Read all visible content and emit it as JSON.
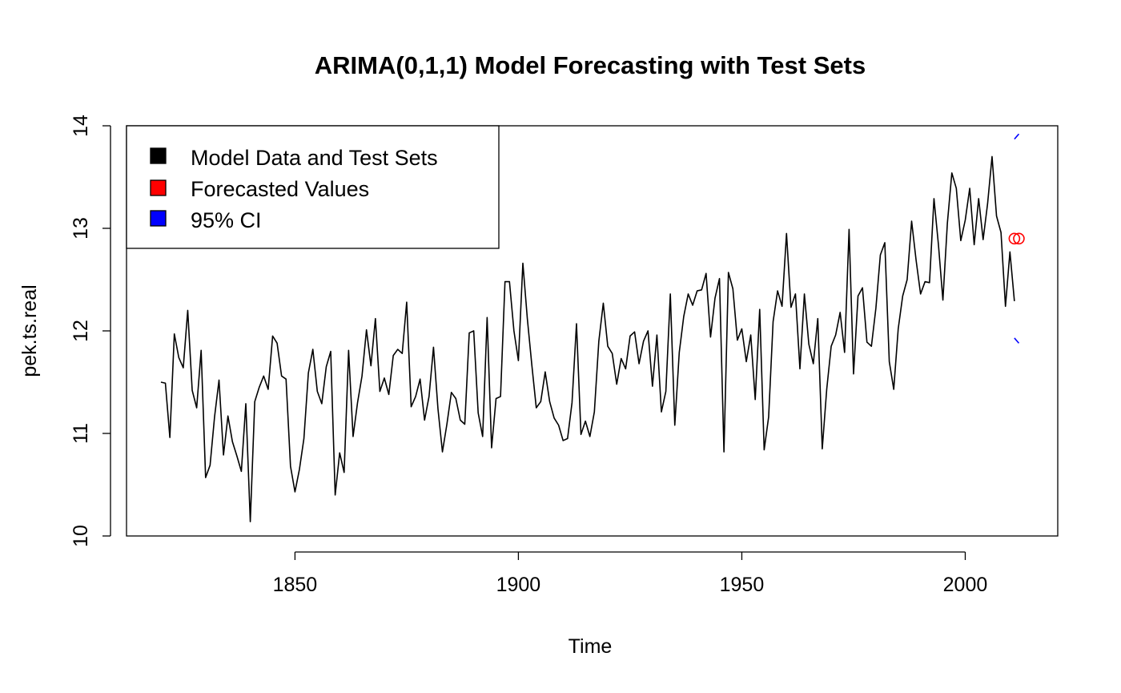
{
  "chart_data": {
    "type": "line",
    "title": "ARIMA(0,1,1) Model Forecasting with Test Sets",
    "xlabel": "Time",
    "ylabel": "pek.ts.real",
    "xlim": [
      1812.3,
      2020.7
    ],
    "ylim": [
      10,
      14
    ],
    "x_ticks": [
      1850,
      1900,
      1950,
      2000
    ],
    "y_ticks": [
      10,
      11,
      12,
      13,
      14
    ],
    "grid": false,
    "legend_position": "top-left",
    "legend": [
      {
        "label": "Model Data and Test Sets",
        "color": "#000000"
      },
      {
        "label": "Forecasted Values",
        "color": "#ff0000"
      },
      {
        "label": "95% CI",
        "color": "#0000ff"
      }
    ],
    "series": [
      {
        "kind": "line",
        "color": "#000000",
        "start_year": 1820,
        "values": [
          11.5,
          11.49,
          10.96,
          11.97,
          11.74,
          11.64,
          12.2,
          11.42,
          11.25,
          11.81,
          10.57,
          10.69,
          11.16,
          11.52,
          10.79,
          11.17,
          10.92,
          10.78,
          10.63,
          11.29,
          10.14,
          11.31,
          11.45,
          11.56,
          11.43,
          11.95,
          11.88,
          11.56,
          11.53,
          10.68,
          10.43,
          10.65,
          10.95,
          11.59,
          11.82,
          11.41,
          11.29,
          11.65,
          11.8,
          10.4,
          10.81,
          10.62,
          11.81,
          10.97,
          11.3,
          11.56,
          12.01,
          11.66,
          12.12,
          11.41,
          11.54,
          11.38,
          11.76,
          11.82,
          11.78,
          12.28,
          11.26,
          11.36,
          11.53,
          11.13,
          11.36,
          11.84,
          11.24,
          10.82,
          11.09,
          11.4,
          11.34,
          11.13,
          11.09,
          11.98,
          12.0,
          11.2,
          10.97,
          12.13,
          10.86,
          11.34,
          11.36,
          12.48,
          12.48,
          12.0,
          11.71,
          12.66,
          12.12,
          11.67,
          11.25,
          11.31,
          11.6,
          11.31,
          11.15,
          11.08,
          10.93,
          10.95,
          11.3,
          12.07,
          10.99,
          11.12,
          10.97,
          11.21,
          11.9,
          12.27,
          11.85,
          11.78,
          11.48,
          11.73,
          11.63,
          11.95,
          11.99,
          11.68,
          11.9,
          12.0,
          11.46,
          11.96,
          11.21,
          11.41,
          12.36,
          11.08,
          11.79,
          12.14,
          12.36,
          12.25,
          12.39,
          12.4,
          12.56,
          11.94,
          12.32,
          12.51,
          10.82,
          12.57,
          12.41,
          11.91,
          12.02,
          11.7,
          11.96,
          11.33,
          12.21,
          10.84,
          11.16,
          12.09,
          12.39,
          12.24,
          12.95,
          12.23,
          12.36,
          11.63,
          12.36,
          11.87,
          11.68,
          12.12,
          10.85,
          11.43,
          11.85,
          11.96,
          12.18,
          11.79,
          12.99,
          11.58,
          12.34,
          12.42,
          11.89,
          11.85,
          12.22,
          12.74,
          12.86,
          11.7,
          11.43,
          12.02,
          12.34,
          12.5,
          13.07,
          12.69,
          12.36,
          12.48,
          12.47,
          13.29,
          12.84,
          12.3,
          13.05,
          13.54,
          13.39,
          12.88,
          13.08,
          13.39,
          12.84,
          13.29,
          12.89,
          13.24,
          13.7,
          13.12,
          12.96,
          12.24,
          12.77,
          12.29
        ]
      },
      {
        "kind": "points",
        "label": "Forecasted Values",
        "color": "#ff0000",
        "x": [
          2011,
          2012
        ],
        "y": [
          12.9,
          12.9
        ]
      },
      {
        "kind": "ci_upper",
        "label": "95% CI upper",
        "color": "#0000ff",
        "x": [
          2011,
          2012
        ],
        "y": [
          13.87,
          13.92
        ]
      },
      {
        "kind": "ci_lower",
        "label": "95% CI lower",
        "color": "#0000ff",
        "x": [
          2011,
          2012
        ],
        "y": [
          11.93,
          11.88
        ]
      }
    ]
  }
}
